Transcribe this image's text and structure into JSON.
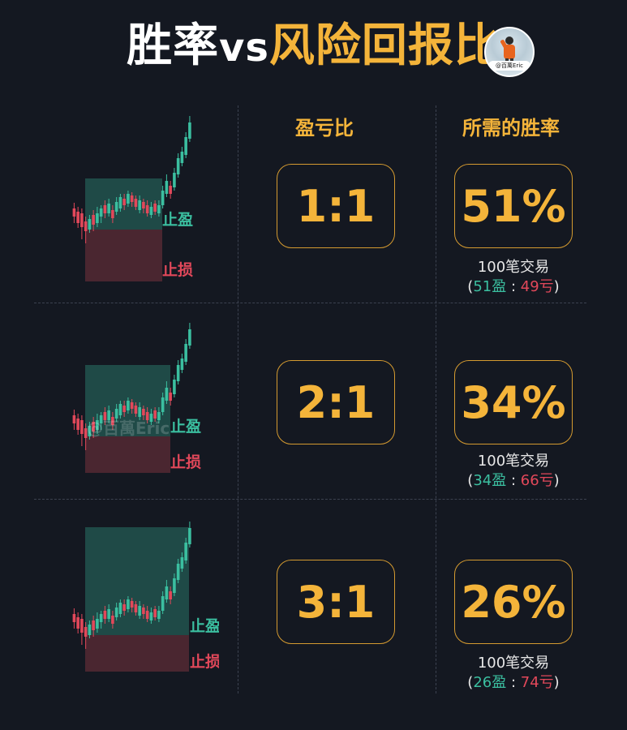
{
  "title": {
    "part1": "胜率",
    "vs": "vs",
    "part2": "风险回报比"
  },
  "avatar": {
    "tag": "@百萬Eric"
  },
  "watermark": "@百萬Eric",
  "headers": {
    "ratio": "盈亏比",
    "winrate": "所需的胜率"
  },
  "chart_labels": {
    "take_profit": "止盈",
    "stop_loss": "止损"
  },
  "rows": [
    {
      "ratio": "1:1",
      "winrate": "51%",
      "trades_label": "100笔交易",
      "open": "(",
      "wins": "51盈",
      "sep": " : ",
      "losses": "49亏",
      "close": ")"
    },
    {
      "ratio": "2:1",
      "winrate": "34%",
      "trades_label": "100笔交易",
      "open": "(",
      "wins": "34盈",
      "sep": " : ",
      "losses": "66亏",
      "close": ")"
    },
    {
      "ratio": "3:1",
      "winrate": "26%",
      "trades_label": "100笔交易",
      "open": "(",
      "wins": "26盈",
      "sep": " : ",
      "losses": "74亏",
      "close": ")"
    }
  ],
  "colors": {
    "bg": "#141821",
    "gold": "#f4b43a",
    "green": "#3bbfa0",
    "red": "#e2485a",
    "tp_zone": "#1f4a47",
    "sl_zone": "#4a2630"
  }
}
